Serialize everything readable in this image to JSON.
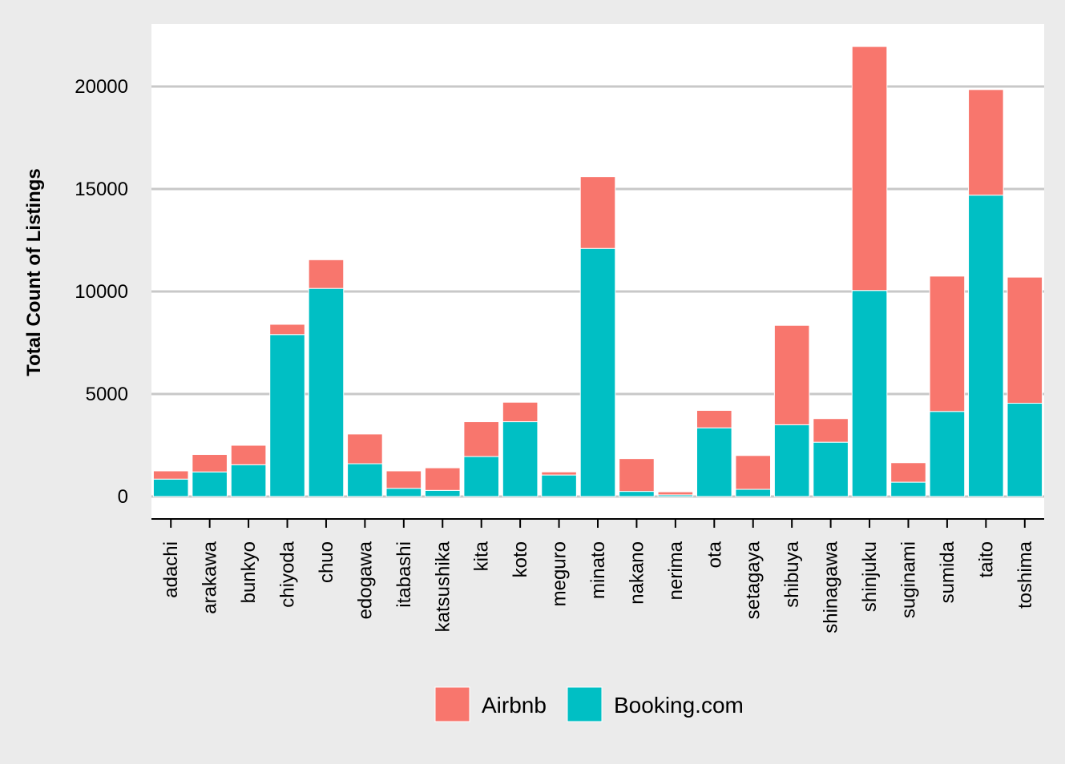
{
  "chart_data": {
    "type": "bar",
    "stacked": true,
    "title": "",
    "xlabel": "",
    "ylabel": "Total Count of Listings",
    "ylim": [
      -1100,
      23000
    ],
    "yticks": [
      0,
      5000,
      10000,
      15000,
      20000
    ],
    "grid": "horizontal",
    "legend_position": "bottom",
    "categories": [
      "adachi",
      "arakawa",
      "bunkyo",
      "chiyoda",
      "chuo",
      "edogawa",
      "itabashi",
      "katsushika",
      "kita",
      "koto",
      "meguro",
      "minato",
      "nakano",
      "nerima",
      "ota",
      "setagaya",
      "shibuya",
      "shinagawa",
      "shinjuku",
      "suginami",
      "sumida",
      "taito",
      "toshima"
    ],
    "series": [
      {
        "name": "Booking.com",
        "color": "#00bfc4",
        "values": [
          850,
          1200,
          1550,
          7900,
          10150,
          1600,
          400,
          300,
          1950,
          3650,
          1050,
          12100,
          250,
          80,
          3350,
          350,
          3500,
          2650,
          10050,
          700,
          4150,
          14700,
          4550
        ]
      },
      {
        "name": "Airbnb",
        "color": "#f8766d",
        "values": [
          400,
          850,
          950,
          500,
          1400,
          1450,
          850,
          1100,
          1700,
          950,
          150,
          3500,
          1600,
          150,
          850,
          1650,
          4850,
          1150,
          11900,
          950,
          6600,
          5150,
          6150
        ]
      }
    ],
    "legend": [
      {
        "name": "Airbnb",
        "color": "#f8766d"
      },
      {
        "name": "Booking.com",
        "color": "#00bfc4"
      }
    ]
  }
}
